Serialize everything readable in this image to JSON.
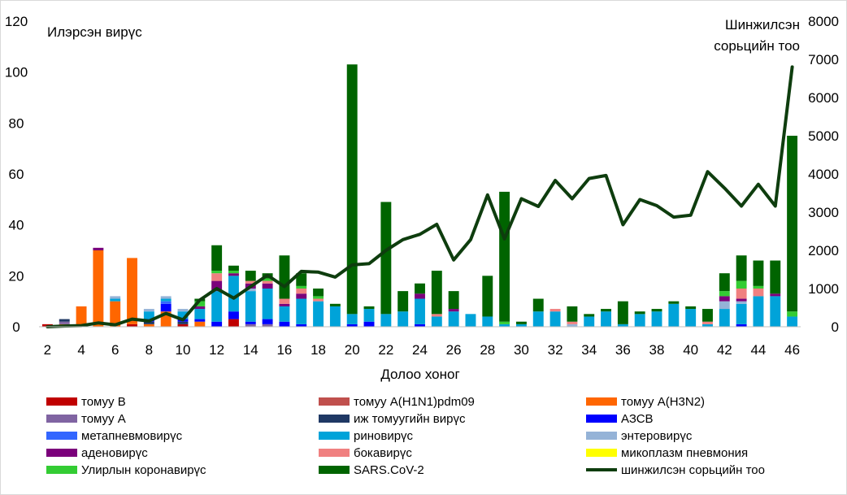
{
  "chart_data": {
    "type": "bar",
    "stacked": true,
    "ylabel_left": "Илэрсэн вирүс",
    "ylabel_right_lines": [
      "Шинжилсэн",
      "сорьцийн тоо"
    ],
    "xlabel": "Долоо хоног",
    "ylim_left": [
      0,
      120
    ],
    "ylim_right": [
      0,
      8000
    ],
    "yticks_left": [
      0,
      20,
      40,
      60,
      80,
      100,
      120
    ],
    "yticks_right": [
      0,
      1000,
      2000,
      3000,
      4000,
      5000,
      6000,
      7000,
      8000
    ],
    "xtick_labels": [
      "2",
      "4",
      "6",
      "8",
      "10",
      "12",
      "14",
      "16",
      "18",
      "20",
      "22",
      "24",
      "26",
      "28",
      "30",
      "32",
      "34",
      "36",
      "38",
      "40",
      "42",
      "44",
      "46"
    ],
    "weeks": [
      2,
      3,
      4,
      5,
      6,
      7,
      8,
      9,
      10,
      11,
      12,
      13,
      14,
      15,
      16,
      17,
      18,
      19,
      20,
      21,
      22,
      23,
      24,
      25,
      26,
      27,
      28,
      29,
      30,
      31,
      32,
      33,
      34,
      35,
      36,
      37,
      38,
      39,
      40,
      41,
      42,
      43,
      44,
      45,
      46
    ],
    "series": [
      {
        "name": "томуу B",
        "color": "#c00000",
        "values": [
          1,
          0,
          0,
          0,
          0,
          1,
          0,
          0,
          1,
          0,
          0,
          3,
          0,
          0,
          0,
          0,
          0,
          0,
          0,
          0,
          0,
          0,
          0,
          0,
          0,
          0,
          0,
          0,
          0,
          0,
          0,
          0,
          0,
          0,
          0,
          0,
          0,
          0,
          0,
          0,
          0,
          0,
          0,
          0,
          0
        ]
      },
      {
        "name": "томуу A(H1N1)pdm09",
        "color": "#c0504d",
        "values": [
          0,
          0,
          0,
          0,
          0,
          0,
          0,
          0,
          0,
          0,
          0,
          0,
          0,
          0,
          0,
          0,
          0,
          0,
          0,
          0,
          0,
          0,
          0,
          0,
          0,
          0,
          0,
          0,
          0,
          0,
          0,
          0,
          0,
          0,
          0,
          0,
          0,
          0,
          0,
          0,
          0,
          0,
          0,
          0,
          0
        ]
      },
      {
        "name": "томуу A(H3N2)",
        "color": "#ff6600",
        "values": [
          0,
          1,
          8,
          30,
          10,
          26,
          1,
          6,
          0,
          2,
          0,
          0,
          0,
          0,
          0,
          0,
          0,
          0,
          0,
          0,
          0,
          0,
          0,
          0,
          0,
          0,
          0,
          0,
          0,
          0,
          0,
          0,
          0,
          0,
          0,
          0,
          0,
          0,
          0,
          0,
          0,
          0,
          0,
          0,
          0
        ]
      },
      {
        "name": "томуу A",
        "color": "#8064a2",
        "values": [
          0,
          1,
          0,
          0,
          0,
          0,
          0,
          0,
          0,
          0,
          0,
          0,
          1,
          1,
          0,
          0,
          0,
          0,
          0,
          0,
          0,
          0,
          0,
          0,
          0,
          0,
          0,
          0,
          0,
          0,
          0,
          0,
          0,
          0,
          0,
          0,
          0,
          0,
          0,
          0,
          0,
          0,
          0,
          0,
          0
        ]
      },
      {
        "name": "иж томуугийн вирүс",
        "color": "#1f3864",
        "values": [
          0,
          1,
          0,
          0,
          0,
          0,
          1,
          0,
          1,
          0,
          0,
          0,
          0,
          0,
          0,
          0,
          0,
          0,
          0,
          0,
          0,
          0,
          0,
          0,
          0,
          0,
          0,
          0,
          0,
          0,
          0,
          0,
          0,
          0,
          0,
          0,
          0,
          0,
          0,
          0,
          0,
          0,
          0,
          0,
          0
        ]
      },
      {
        "name": "АЗСВ",
        "color": "#0000ff",
        "values": [
          0,
          0,
          0,
          0,
          0,
          0,
          1,
          3,
          1,
          1,
          2,
          3,
          1,
          2,
          2,
          1,
          0,
          0,
          1,
          2,
          0,
          0,
          1,
          0,
          0,
          0,
          0,
          0,
          0,
          0,
          0,
          0,
          0,
          0,
          0,
          0,
          0,
          0,
          0,
          0,
          0,
          1,
          0,
          0,
          0
        ]
      },
      {
        "name": "метапневмовирүс",
        "color": "#3366ff",
        "values": [
          0,
          0,
          0,
          0,
          0,
          0,
          0,
          1,
          0,
          0,
          0,
          0,
          0,
          0,
          0,
          0,
          0,
          0,
          0,
          0,
          0,
          0,
          0,
          0,
          0,
          0,
          0,
          0,
          0,
          0,
          0,
          0,
          0,
          0,
          0,
          0,
          0,
          0,
          0,
          0,
          0,
          0,
          0,
          0,
          0
        ]
      },
      {
        "name": "риновирүс",
        "color": "#00a3d9",
        "values": [
          0,
          0,
          0,
          0,
          1,
          0,
          3,
          1,
          3,
          4,
          12,
          14,
          12,
          12,
          6,
          10,
          10,
          8,
          4,
          5,
          5,
          6,
          10,
          4,
          6,
          5,
          4,
          1,
          1,
          6,
          6,
          0,
          4,
          6,
          1,
          5,
          6,
          9,
          7,
          1,
          7,
          8,
          12,
          12,
          4
        ]
      },
      {
        "name": "энтеровирүс",
        "color": "#95b3d7",
        "values": [
          0,
          0,
          0,
          0,
          1,
          0,
          1,
          1,
          1,
          0,
          0,
          0,
          1,
          0,
          0,
          0,
          0,
          0,
          0,
          0,
          0,
          0,
          0,
          0,
          0,
          0,
          0,
          0,
          0,
          0,
          0,
          1,
          0,
          0,
          0,
          0,
          0,
          0,
          0,
          0,
          3,
          1,
          0,
          0,
          0
        ]
      },
      {
        "name": "аденовирүс",
        "color": "#7b007b",
        "values": [
          0,
          0,
          0,
          1,
          0,
          0,
          0,
          0,
          0,
          1,
          4,
          1,
          2,
          2,
          1,
          2,
          0,
          0,
          0,
          0,
          0,
          0,
          2,
          0,
          1,
          0,
          0,
          0,
          0,
          0,
          0,
          0,
          0,
          0,
          0,
          0,
          0,
          0,
          0,
          0,
          2,
          1,
          0,
          1,
          0
        ]
      },
      {
        "name": "бокавирүс",
        "color": "#f08080",
        "values": [
          0,
          0,
          0,
          0,
          0,
          0,
          0,
          0,
          0,
          0,
          3,
          0,
          1,
          1,
          2,
          2,
          1,
          0,
          0,
          0,
          0,
          0,
          0,
          1,
          0,
          0,
          0,
          0,
          0,
          0,
          1,
          1,
          0,
          0,
          0,
          0,
          0,
          0,
          0,
          1,
          0,
          4,
          3,
          0,
          0
        ]
      },
      {
        "name": "микоплазм пневмония",
        "color": "#ffff00",
        "values": [
          0,
          0,
          0,
          0,
          0,
          0,
          0,
          0,
          0,
          0,
          0,
          0,
          0,
          0,
          0,
          0,
          0,
          0,
          0,
          0,
          0,
          0,
          0,
          0,
          0,
          0,
          0,
          0,
          0,
          0,
          0,
          0,
          0,
          0,
          0,
          0,
          0,
          0,
          0,
          0,
          0,
          0,
          0,
          0,
          0
        ]
      },
      {
        "name": "Улирлын коронавирүс",
        "color": "#33cc33",
        "values": [
          0,
          0,
          0,
          0,
          0,
          0,
          0,
          0,
          0,
          2,
          1,
          1,
          0,
          1,
          0,
          1,
          1,
          0,
          0,
          0,
          0,
          0,
          0,
          0,
          0,
          0,
          0,
          1,
          0,
          0,
          0,
          0,
          0,
          0,
          0,
          0,
          0,
          0,
          0,
          0,
          2,
          3,
          1,
          0,
          2
        ]
      },
      {
        "name": "SARS.CoV-2",
        "color": "#006400",
        "values": [
          0,
          0,
          0,
          0,
          0,
          0,
          0,
          0,
          0,
          1,
          10,
          2,
          4,
          2,
          17,
          5,
          3,
          1,
          98,
          1,
          44,
          8,
          4,
          17,
          7,
          0,
          16,
          51,
          1,
          5,
          0,
          6,
          1,
          1,
          9,
          1,
          1,
          1,
          1,
          5,
          7,
          10,
          10,
          13,
          69
        ]
      },
      {
        "name": "шинжилсэн сорьцийн тоо",
        "color": "#0e3d0e",
        "axis": "right",
        "values": [
          0,
          20,
          30,
          100,
          50,
          200,
          150,
          350,
          180,
          700,
          1000,
          750,
          1050,
          1350,
          1050,
          1450,
          1430,
          1300,
          1620,
          1650,
          2000,
          2280,
          2420,
          2680,
          1750,
          2280,
          3450,
          2300,
          3350,
          3150,
          3830,
          3350,
          3880,
          3960,
          2670,
          3330,
          3170,
          2870,
          2920,
          4060,
          3630,
          3160,
          3730,
          3160,
          6800
        ]
      }
    ]
  }
}
